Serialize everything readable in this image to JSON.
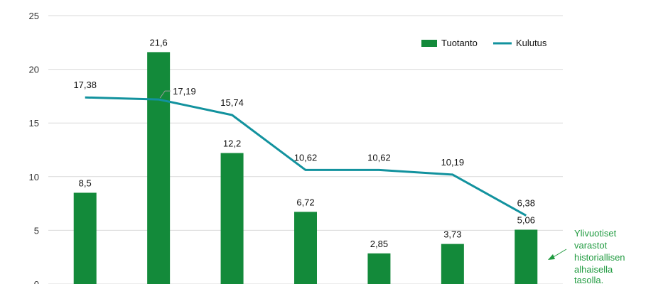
{
  "chart_data": {
    "type": "bar",
    "categories": [
      "",
      "",
      "",
      "",
      "",
      "",
      ""
    ],
    "y_ticks": [
      0,
      5,
      10,
      15,
      20,
      25
    ],
    "y_tick_labels": [
      "0",
      "5",
      "10",
      "15",
      "20",
      "25"
    ],
    "ylim": [
      0,
      25
    ],
    "grid": true,
    "legend_position": "top-right",
    "series": [
      {
        "name": "Tuotanto",
        "type": "bar",
        "color": "#138a3a",
        "values": [
          8.5,
          21.6,
          12.2,
          6.72,
          2.85,
          3.73,
          5.06
        ],
        "labels": [
          "8,5",
          "21,6",
          "12,2",
          "6,72",
          "2,85",
          "3,73",
          "5,06"
        ]
      },
      {
        "name": "Kulutus",
        "type": "line",
        "color": "#12929e",
        "values": [
          17.38,
          17.19,
          15.74,
          10.62,
          10.62,
          10.19,
          6.38
        ],
        "labels": [
          "17,38",
          "17,19",
          "15,74",
          "10,62",
          "10,62",
          "10,19",
          "6,38"
        ]
      }
    ],
    "annotation": {
      "lines": [
        "Ylivuotiset",
        "varastot",
        "historiallisen",
        "alhaisella",
        "tasolla."
      ],
      "color": "#1f9a3f"
    }
  }
}
